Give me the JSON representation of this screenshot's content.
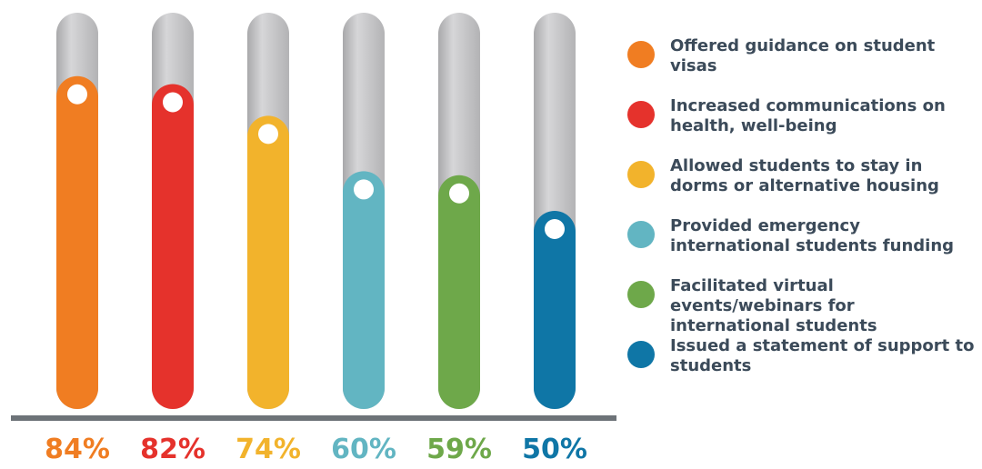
{
  "chart_data": {
    "type": "bar",
    "categories": [
      "Offered guidance on student visas",
      "Increased communications on health, well-being",
      "Allowed students to stay in dorms or alternative housing",
      "Provided emergency international students funding",
      "Facilitated virtual events/webinars for international students",
      "Issued a statement of support to students"
    ],
    "series": [
      {
        "values": [
          84,
          82,
          74,
          60,
          59,
          50
        ]
      }
    ],
    "value_labels": [
      "84%",
      "82%",
      "74%",
      "60%",
      "59%",
      "50%"
    ],
    "colors": [
      "#f07d22",
      "#e5322c",
      "#f2b32c",
      "#62b5c2",
      "#6ea84a",
      "#0f76a6"
    ],
    "track_color": "#c9c9cb",
    "baseline_color": "#6d7378",
    "ylim": [
      0,
      100
    ],
    "legend_position": "right",
    "grid": false
  },
  "legend": {
    "items": [
      {
        "label": "Offered guidance on student visas"
      },
      {
        "label": "Increased communications on health, well-being"
      },
      {
        "label": "Allowed students to stay in dorms or alternative housing"
      },
      {
        "label": "Provided emergency international students funding"
      },
      {
        "label": "Facilitated virtual events/webinars for international students"
      },
      {
        "label": "Issued a statement of support to students"
      }
    ]
  }
}
